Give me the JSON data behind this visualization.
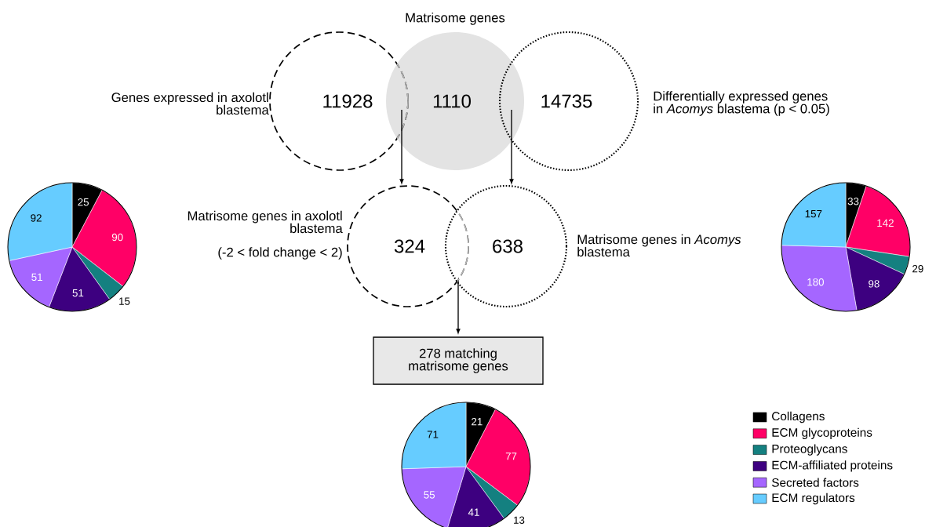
{
  "chart_data": [
    {
      "type": "other",
      "categories": [
        "Genes expressed in axolotl blastema",
        "Matrisome genes",
        "Differentially expressed genes in *Acomys* blastema (p < 0.05)"
      ],
      "values": [
        11928,
        1110,
        14735
      ],
      "data_labels": true
    },
    {
      "type": "other",
      "categories": [
        "Matrisome genes in axolotl blastema",
        "Matrisome genes in *Acomys* blastema"
      ],
      "values": [
        324,
        638
      ],
      "data_labels": true,
      "annotations": [
        "(-2 < fold change < 2)",
        "278 matching matrisome genes"
      ]
    },
    {
      "type": "pie",
      "categories": [
        null,
        null,
        null,
        null,
        null,
        null
      ],
      "values": [
        25,
        90,
        15,
        51,
        51,
        92
      ],
      "colors": [
        "#000000",
        "#ff0066",
        "#148080",
        "#3d0080",
        "#a566ff",
        "#66ccff"
      ],
      "data_labels": true
    },
    {
      "type": "pie",
      "categories": [
        null,
        null,
        null,
        null,
        null,
        null
      ],
      "values": [
        33,
        142,
        29,
        98,
        180,
        157
      ],
      "colors": [
        "#000000",
        "#ff0066",
        "#148080",
        "#3d0080",
        "#a566ff",
        "#66ccff"
      ],
      "data_labels": true
    },
    {
      "type": "pie",
      "categories": [
        "Collagens",
        "ECM glycoproteins",
        "Proteoglycans",
        "ECM-affiliated proteins",
        "Secreted factors",
        "ECM regulators"
      ],
      "values": [
        21,
        77,
        13,
        41,
        55,
        71
      ],
      "colors": [
        "#000000",
        "#ff0066",
        "#148080",
        "#3d0080",
        "#a566ff",
        "#66ccff"
      ],
      "data_labels": true,
      "legend": "right"
    }
  ]
}
